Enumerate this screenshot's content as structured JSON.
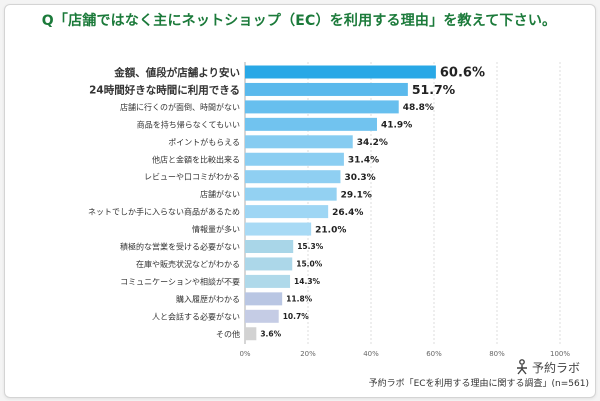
{
  "chart_data": {
    "type": "bar",
    "orientation": "horizontal",
    "title": "Q「店舗ではなく主にネットショップ（EC）を利用する理由」を教えて下さい。",
    "categories": [
      "金額、値段が店舗より安い",
      "24時間好きな時間に利用できる",
      "店舗に行くのが面倒、時間がない",
      "商品を持ち帰らなくてもいい",
      "ポイントがもらえる",
      "他店と金額を比較出来る",
      "レビューや口コミがわかる",
      "店舗がない",
      "ネットでしか手に入らない商品があるため",
      "情報量が多い",
      "積極的な営業を受ける必要がない",
      "在庫や販売状況などがわかる",
      "コミュニケーションや相談が不要",
      "購入履歴がわかる",
      "人と会話する必要がない",
      "その他"
    ],
    "values": [
      60.6,
      51.7,
      48.8,
      41.9,
      34.2,
      31.4,
      30.3,
      29.1,
      26.4,
      21.0,
      15.3,
      15.0,
      14.3,
      11.8,
      10.7,
      3.6
    ],
    "value_labels": [
      "60.6%",
      "51.7%",
      "48.8%",
      "41.9%",
      "34.2%",
      "31.4%",
      "30.3%",
      "29.1%",
      "26.4%",
      "21.0%",
      "15.3%",
      "15.0%",
      "14.3%",
      "11.8%",
      "10.7%",
      "3.6%"
    ],
    "xlim": [
      0,
      100
    ],
    "xticks": [
      "0%",
      "20%",
      "40%",
      "60%",
      "80%",
      "100%"
    ],
    "grid": "vertical-dashed",
    "colors": [
      "#29a8e6",
      "#5ab9ec",
      "#67bfee",
      "#71c3ef",
      "#86ccf1",
      "#8bcef2",
      "#8fcff2",
      "#93d1f2",
      "#9ed6f4",
      "#a8daf5",
      "#a9d6e8",
      "#acd7e9",
      "#afd9ea",
      "#b9c6e3",
      "#c5cce5",
      "#d2d2d2"
    ]
  },
  "logo": {
    "text": "予約ラボ"
  },
  "source": "予約ラボ「ECを利用する理由に関する調査」(n=561)"
}
